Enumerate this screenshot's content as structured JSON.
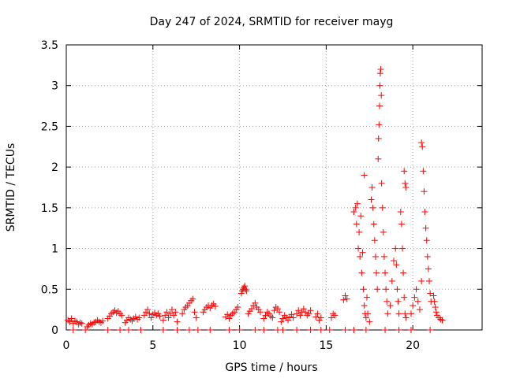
{
  "chart_data": {
    "type": "scatter",
    "title": "Day 247 of 2024, SRMTID for receiver mayg",
    "xlabel": "GPS time / hours",
    "ylabel": "SRMTID / TECUs",
    "xlim": [
      0,
      24
    ],
    "ylim": [
      0,
      3.5
    ],
    "xticks": [
      0,
      5,
      10,
      15,
      20
    ],
    "xtick_labels": [
      "0",
      "5",
      "10",
      "15",
      "20"
    ],
    "yticks": [
      0,
      0.5,
      1,
      1.5,
      2,
      2.5,
      3,
      3.5
    ],
    "ytick_labels": [
      "0",
      "0.5",
      "1",
      "1.5",
      "2",
      "2.5",
      "3",
      "3.5"
    ],
    "grid": true,
    "marker": "+",
    "color": "#ff0000",
    "series": [
      {
        "name": "SRMTID",
        "points": [
          [
            0.1,
            0.12
          ],
          [
            0.2,
            0.1
          ],
          [
            0.3,
            0.14
          ],
          [
            0.4,
            0.08
          ],
          [
            0.5,
            0.11
          ],
          [
            0.6,
            0.1
          ],
          [
            0.7,
            0.07
          ],
          [
            0.8,
            0.09
          ],
          [
            0.9,
            0.08
          ],
          [
            1.2,
            0.04
          ],
          [
            1.3,
            0.06
          ],
          [
            1.4,
            0.08
          ],
          [
            1.5,
            0.07
          ],
          [
            1.6,
            0.09
          ],
          [
            1.7,
            0.1
          ],
          [
            1.8,
            0.12
          ],
          [
            1.9,
            0.1
          ],
          [
            2.0,
            0.09
          ],
          [
            2.1,
            0.11
          ],
          [
            2.4,
            0.14
          ],
          [
            2.5,
            0.17
          ],
          [
            2.6,
            0.2
          ],
          [
            2.7,
            0.22
          ],
          [
            2.8,
            0.24
          ],
          [
            2.9,
            0.21
          ],
          [
            3.0,
            0.23
          ],
          [
            3.1,
            0.2
          ],
          [
            3.2,
            0.18
          ],
          [
            3.4,
            0.09
          ],
          [
            3.5,
            0.12
          ],
          [
            3.6,
            0.15
          ],
          [
            3.7,
            0.13
          ],
          [
            3.8,
            0.11
          ],
          [
            3.9,
            0.14
          ],
          [
            4.0,
            0.16
          ],
          [
            4.1,
            0.13
          ],
          [
            4.2,
            0.15
          ],
          [
            4.5,
            0.18
          ],
          [
            4.6,
            0.22
          ],
          [
            4.7,
            0.25
          ],
          [
            4.8,
            0.2
          ],
          [
            4.9,
            0.15
          ],
          [
            5.0,
            0.19
          ],
          [
            5.1,
            0.21
          ],
          [
            5.2,
            0.18
          ],
          [
            5.3,
            0.2
          ],
          [
            5.4,
            0.17
          ],
          [
            5.6,
            0.12
          ],
          [
            5.7,
            0.18
          ],
          [
            5.8,
            0.22
          ],
          [
            5.9,
            0.15
          ],
          [
            6.0,
            0.2
          ],
          [
            6.1,
            0.25
          ],
          [
            6.2,
            0.18
          ],
          [
            6.3,
            0.22
          ],
          [
            6.4,
            0.1
          ],
          [
            6.7,
            0.2
          ],
          [
            6.8,
            0.25
          ],
          [
            6.9,
            0.28
          ],
          [
            7.0,
            0.3
          ],
          [
            7.1,
            0.33
          ],
          [
            7.2,
            0.36
          ],
          [
            7.3,
            0.38
          ],
          [
            7.4,
            0.22
          ],
          [
            7.5,
            0.15
          ],
          [
            7.9,
            0.22
          ],
          [
            8.0,
            0.25
          ],
          [
            8.1,
            0.28
          ],
          [
            8.2,
            0.3
          ],
          [
            8.3,
            0.27
          ],
          [
            8.4,
            0.3
          ],
          [
            8.5,
            0.32
          ],
          [
            8.6,
            0.29
          ],
          [
            9.2,
            0.16
          ],
          [
            9.3,
            0.19
          ],
          [
            9.4,
            0.14
          ],
          [
            9.5,
            0.18
          ],
          [
            9.6,
            0.2
          ],
          [
            9.7,
            0.22
          ],
          [
            9.8,
            0.25
          ],
          [
            9.9,
            0.28
          ],
          [
            10.1,
            0.45
          ],
          [
            10.15,
            0.48
          ],
          [
            10.2,
            0.5
          ],
          [
            10.25,
            0.52
          ],
          [
            10.3,
            0.54
          ],
          [
            10.35,
            0.5
          ],
          [
            10.4,
            0.48
          ],
          [
            10.5,
            0.2
          ],
          [
            10.6,
            0.23
          ],
          [
            10.7,
            0.26
          ],
          [
            10.8,
            0.3
          ],
          [
            10.9,
            0.33
          ],
          [
            11.0,
            0.28
          ],
          [
            11.1,
            0.25
          ],
          [
            11.2,
            0.22
          ],
          [
            11.4,
            0.14
          ],
          [
            11.5,
            0.18
          ],
          [
            11.6,
            0.22
          ],
          [
            11.7,
            0.2
          ],
          [
            11.8,
            0.17
          ],
          [
            11.9,
            0.15
          ],
          [
            12.0,
            0.24
          ],
          [
            12.1,
            0.28
          ],
          [
            12.2,
            0.26
          ],
          [
            12.3,
            0.22
          ],
          [
            12.4,
            0.1
          ],
          [
            12.5,
            0.14
          ],
          [
            12.6,
            0.18
          ],
          [
            12.7,
            0.15
          ],
          [
            12.8,
            0.12
          ],
          [
            12.9,
            0.16
          ],
          [
            13.0,
            0.19
          ],
          [
            13.1,
            0.15
          ],
          [
            13.3,
            0.2
          ],
          [
            13.4,
            0.24
          ],
          [
            13.5,
            0.18
          ],
          [
            13.6,
            0.22
          ],
          [
            13.7,
            0.26
          ],
          [
            13.8,
            0.22
          ],
          [
            13.9,
            0.18
          ],
          [
            14.0,
            0.2
          ],
          [
            14.1,
            0.24
          ],
          [
            14.4,
            0.16
          ],
          [
            14.5,
            0.2
          ],
          [
            14.6,
            0.12
          ],
          [
            14.7,
            0.15
          ],
          [
            15.3,
            0.15
          ],
          [
            15.4,
            0.2
          ],
          [
            15.5,
            0.18
          ],
          [
            16.0,
            0.37
          ],
          [
            16.1,
            0.42
          ],
          [
            16.2,
            0.38
          ],
          [
            16.6,
            1.45
          ],
          [
            16.7,
            1.5
          ],
          [
            16.75,
            1.3
          ],
          [
            16.8,
            1.55
          ],
          [
            16.85,
            1.0
          ],
          [
            16.9,
            1.2
          ],
          [
            16.95,
            0.9
          ],
          [
            17.0,
            1.4
          ],
          [
            17.05,
            0.7
          ],
          [
            17.1,
            0.95
          ],
          [
            17.15,
            0.5
          ],
          [
            17.2,
            0.3
          ],
          [
            17.25,
            0.2
          ],
          [
            17.3,
            0.15
          ],
          [
            17.35,
            0.4
          ],
          [
            17.2,
            1.9
          ],
          [
            17.4,
            0.2
          ],
          [
            17.5,
            0.1
          ],
          [
            17.6,
            1.6
          ],
          [
            17.65,
            1.75
          ],
          [
            17.7,
            1.5
          ],
          [
            17.75,
            1.3
          ],
          [
            17.8,
            1.1
          ],
          [
            17.85,
            0.9
          ],
          [
            17.9,
            0.7
          ],
          [
            17.95,
            0.5
          ],
          [
            18.0,
            2.1
          ],
          [
            18.02,
            2.35
          ],
          [
            18.05,
            2.52
          ],
          [
            18.08,
            2.75
          ],
          [
            18.1,
            3.0
          ],
          [
            18.12,
            3.15
          ],
          [
            18.15,
            3.2
          ],
          [
            18.18,
            2.88
          ],
          [
            18.2,
            1.8
          ],
          [
            18.25,
            1.5
          ],
          [
            18.3,
            1.2
          ],
          [
            18.35,
            0.9
          ],
          [
            18.4,
            0.7
          ],
          [
            18.45,
            0.5
          ],
          [
            18.5,
            0.35
          ],
          [
            18.55,
            0.2
          ],
          [
            18.7,
            0.3
          ],
          [
            18.8,
            0.6
          ],
          [
            18.9,
            0.85
          ],
          [
            19.0,
            1.0
          ],
          [
            19.05,
            0.8
          ],
          [
            19.1,
            0.5
          ],
          [
            19.15,
            0.35
          ],
          [
            19.2,
            0.2
          ],
          [
            19.3,
            1.45
          ],
          [
            19.35,
            1.3
          ],
          [
            19.4,
            1.0
          ],
          [
            19.45,
            0.7
          ],
          [
            19.5,
            0.4
          ],
          [
            19.55,
            0.2
          ],
          [
            19.6,
            0.15
          ],
          [
            19.5,
            1.95
          ],
          [
            19.55,
            1.8
          ],
          [
            19.6,
            1.75
          ],
          [
            19.9,
            0.2
          ],
          [
            20.0,
            0.3
          ],
          [
            20.1,
            0.4
          ],
          [
            20.2,
            0.5
          ],
          [
            20.3,
            0.35
          ],
          [
            20.4,
            0.25
          ],
          [
            20.5,
            0.6
          ],
          [
            20.5,
            2.3
          ],
          [
            20.55,
            2.25
          ],
          [
            20.6,
            1.95
          ],
          [
            20.65,
            1.7
          ],
          [
            20.7,
            1.45
          ],
          [
            20.75,
            1.25
          ],
          [
            20.8,
            1.1
          ],
          [
            20.85,
            0.9
          ],
          [
            20.9,
            0.75
          ],
          [
            20.95,
            0.6
          ],
          [
            21.0,
            0.45
          ],
          [
            21.05,
            0.35
          ],
          [
            21.2,
            0.42
          ],
          [
            21.25,
            0.35
          ],
          [
            21.3,
            0.28
          ],
          [
            21.35,
            0.22
          ],
          [
            21.4,
            0.18
          ],
          [
            21.5,
            0.15
          ],
          [
            21.6,
            0.13
          ],
          [
            21.7,
            0.12
          ],
          [
            0.4,
            0.0
          ],
          [
            1.1,
            0.0
          ],
          [
            2.4,
            0.0
          ],
          [
            3.1,
            0.0
          ],
          [
            3.6,
            0.0
          ],
          [
            4.3,
            0.0
          ],
          [
            5.6,
            0.0
          ],
          [
            6.4,
            0.0
          ],
          [
            7.1,
            0.0
          ],
          [
            7.6,
            0.0
          ],
          [
            8.3,
            0.0
          ],
          [
            9.4,
            0.0
          ],
          [
            10.0,
            0.0
          ],
          [
            10.9,
            0.0
          ],
          [
            11.4,
            0.0
          ],
          [
            12.2,
            0.0
          ],
          [
            12.5,
            0.0
          ],
          [
            13.3,
            0.0
          ],
          [
            14.1,
            0.0
          ],
          [
            14.7,
            0.0
          ],
          [
            15.2,
            0.0
          ],
          [
            16.1,
            0.0
          ],
          [
            16.6,
            0.0
          ],
          [
            17.3,
            0.0
          ],
          [
            18.4,
            0.0
          ],
          [
            19.2,
            0.0
          ],
          [
            19.9,
            0.0
          ],
          [
            21.0,
            0.0
          ]
        ]
      }
    ]
  }
}
